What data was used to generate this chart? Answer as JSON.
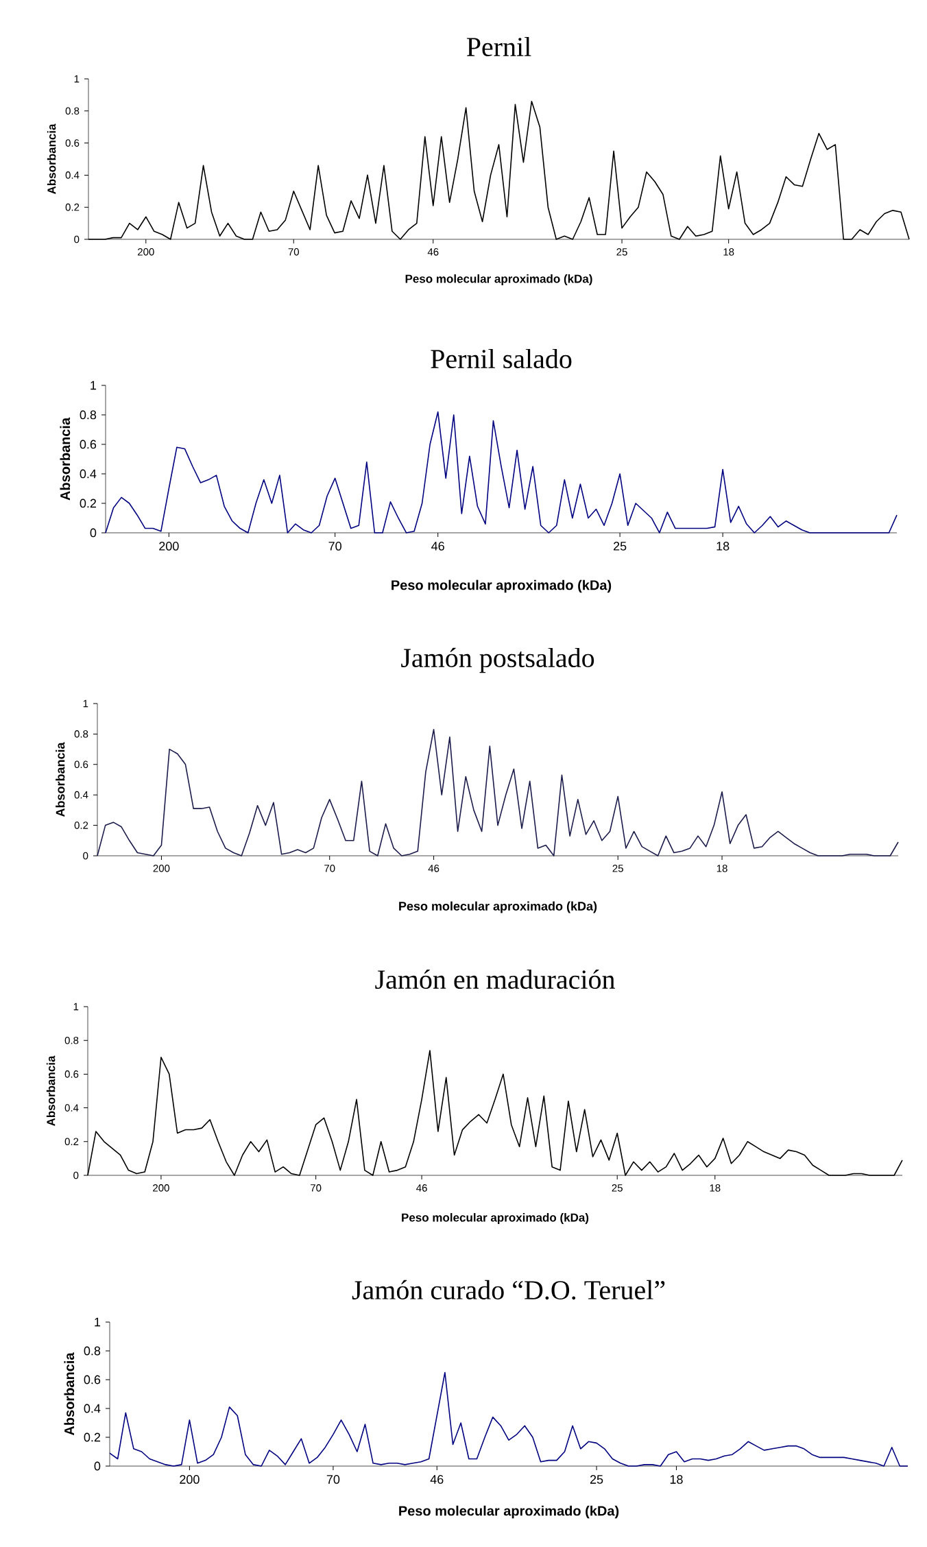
{
  "chart_data": [
    {
      "type": "line",
      "title": "Pernil",
      "xlabel": "Peso molecular aproximado (kDa)",
      "ylabel": "Absorbancia",
      "ylim": [
        0,
        1
      ],
      "yticks": [
        0,
        0.2,
        0.4,
        0.6,
        0.8,
        1
      ],
      "categories": [
        null,
        null,
        null,
        null,
        null,
        null,
        null,
        "200",
        null,
        null,
        null,
        null,
        null,
        null,
        null,
        null,
        null,
        null,
        null,
        null,
        null,
        null,
        null,
        null,
        null,
        "70",
        null,
        null,
        null,
        null,
        null,
        null,
        null,
        null,
        null,
        null,
        null,
        null,
        null,
        null,
        null,
        null,
        "46",
        null,
        null,
        null,
        null,
        null,
        null,
        null,
        null,
        null,
        null,
        null,
        null,
        null,
        null,
        null,
        null,
        null,
        null,
        null,
        null,
        null,
        null,
        "25",
        null,
        null,
        null,
        null,
        null,
        null,
        null,
        null,
        null,
        null,
        null,
        null,
        "18",
        null,
        null,
        null,
        null,
        null,
        null,
        null,
        null,
        null,
        null,
        null,
        null,
        null,
        null,
        null,
        null,
        null,
        null,
        null,
        null,
        null,
        null
      ],
      "series": [
        {
          "color": "#000000",
          "values": [
            0,
            0,
            0,
            0.01,
            0.01,
            0.1,
            0.06,
            0.14,
            0.05,
            0.03,
            0,
            0.23,
            0.07,
            0.1,
            0.46,
            0.17,
            0.02,
            0.1,
            0.02,
            0,
            0,
            0.17,
            0.05,
            0.06,
            0.12,
            0.3,
            0.18,
            0.06,
            0.46,
            0.15,
            0.04,
            0.05,
            0.24,
            0.13,
            0.4,
            0.1,
            0.46,
            0.05,
            0,
            0.06,
            0.1,
            0.64,
            0.21,
            0.64,
            0.23,
            0.5,
            0.82,
            0.3,
            0.11,
            0.4,
            0.59,
            0.14,
            0.84,
            0.48,
            0.86,
            0.7,
            0.2,
            0,
            0.02,
            0,
            0.11,
            0.26,
            0.03,
            0.03,
            0.55,
            0.07,
            0.14,
            0.2,
            0.42,
            0.36,
            0.28,
            0.02,
            0,
            0.08,
            0.02,
            0.03,
            0.05,
            0.52,
            0.19,
            0.42,
            0.1,
            0.03,
            0.06,
            0.1,
            0.23,
            0.39,
            0.34,
            0.33,
            0.5,
            0.66,
            0.56,
            0.59,
            0,
            0,
            0.06,
            0.03,
            0.11,
            0.16,
            0.18,
            0.17,
            0
          ]
        }
      ]
    },
    {
      "type": "line",
      "title": "Pernil salado",
      "xlabel": "Peso molecular aproximado (kDa)",
      "ylabel": "Absorbancia",
      "ylim": [
        0,
        1
      ],
      "yticks": [
        0,
        0.2,
        0.4,
        0.6,
        0.8,
        1
      ],
      "categories": [
        null,
        null,
        null,
        null,
        null,
        null,
        null,
        null,
        "200",
        null,
        null,
        null,
        null,
        null,
        null,
        null,
        null,
        null,
        null,
        null,
        null,
        null,
        null,
        null,
        null,
        null,
        null,
        null,
        null,
        "70",
        null,
        null,
        null,
        null,
        null,
        null,
        null,
        null,
        null,
        null,
        null,
        null,
        "46",
        null,
        null,
        null,
        null,
        null,
        null,
        null,
        null,
        null,
        null,
        null,
        null,
        null,
        null,
        null,
        null,
        null,
        null,
        null,
        null,
        null,
        null,
        "25",
        null,
        null,
        null,
        null,
        null,
        null,
        null,
        null,
        null,
        null,
        null,
        null,
        "18",
        null,
        null,
        null,
        null,
        null,
        null,
        null,
        null,
        null,
        null,
        null,
        null,
        null,
        null,
        null,
        null,
        null,
        null,
        null,
        null,
        null,
        null
      ],
      "series": [
        {
          "color": "#000080",
          "values": [
            0,
            0.17,
            0.24,
            0.2,
            0.12,
            0.03,
            0.03,
            0.01,
            0.3,
            0.58,
            0.57,
            0.45,
            0.34,
            0.36,
            0.39,
            0.18,
            0.08,
            0.03,
            0,
            0.2,
            0.36,
            0.2,
            0.39,
            0,
            0.06,
            0.02,
            0,
            0.05,
            0.25,
            0.37,
            0.2,
            0.03,
            0.05,
            0.48,
            0,
            0,
            0.21,
            0.1,
            0,
            0.01,
            0.2,
            0.6,
            0.82,
            0.37,
            0.8,
            0.13,
            0.52,
            0.18,
            0.06,
            0.76,
            0.45,
            0.17,
            0.56,
            0.16,
            0.45,
            0.05,
            0,
            0.05,
            0.36,
            0.1,
            0.33,
            0.1,
            0.16,
            0.05,
            0.2,
            0.4,
            0.05,
            0.2,
            0.15,
            0.1,
            0,
            0.14,
            0.03,
            0.03,
            0.03,
            0.03,
            0.03,
            0.04,
            0.43,
            0.07,
            0.18,
            0.06,
            0,
            0.05,
            0.11,
            0.04,
            0.08,
            0.05,
            0.02,
            0,
            0,
            0,
            0,
            0,
            0,
            0,
            0,
            0,
            0,
            0,
            0.12
          ]
        }
      ]
    },
    {
      "type": "line",
      "title": "Jamón postsalado",
      "xlabel": "Peso molecular aproximado (kDa)",
      "ylabel": "Absorbancia",
      "ylim": [
        0,
        1
      ],
      "yticks": [
        0,
        0.2,
        0.4,
        0.6,
        0.8,
        1
      ],
      "categories": [
        null,
        null,
        null,
        null,
        null,
        null,
        null,
        null,
        "200",
        null,
        null,
        null,
        null,
        null,
        null,
        null,
        null,
        null,
        null,
        null,
        null,
        null,
        null,
        null,
        null,
        null,
        null,
        null,
        null,
        "70",
        null,
        null,
        null,
        null,
        null,
        null,
        null,
        null,
        null,
        null,
        null,
        null,
        "46",
        null,
        null,
        null,
        null,
        null,
        null,
        null,
        null,
        null,
        null,
        null,
        null,
        null,
        null,
        null,
        null,
        null,
        null,
        null,
        null,
        null,
        null,
        "25",
        null,
        null,
        null,
        null,
        null,
        null,
        null,
        null,
        null,
        null,
        null,
        null,
        "18",
        null,
        null,
        null,
        null,
        null,
        null,
        null,
        null,
        null,
        null,
        null,
        null,
        null,
        null,
        null,
        null,
        null,
        null,
        null,
        null,
        null,
        null
      ],
      "series": [
        {
          "color": "#1c1c4c",
          "values": [
            0,
            0.2,
            0.22,
            0.19,
            0.1,
            0.02,
            0.01,
            0,
            0.07,
            0.7,
            0.67,
            0.6,
            0.31,
            0.31,
            0.32,
            0.16,
            0.05,
            0.02,
            0,
            0.15,
            0.33,
            0.2,
            0.35,
            0.01,
            0.02,
            0.04,
            0.02,
            0.05,
            0.25,
            0.37,
            0.24,
            0.1,
            0.1,
            0.49,
            0.03,
            0,
            0.21,
            0.05,
            0,
            0.01,
            0.03,
            0.55,
            0.83,
            0.4,
            0.78,
            0.16,
            0.52,
            0.3,
            0.16,
            0.72,
            0.2,
            0.4,
            0.57,
            0.18,
            0.49,
            0.05,
            0.07,
            0,
            0.53,
            0.13,
            0.37,
            0.14,
            0.23,
            0.1,
            0.16,
            0.39,
            0.05,
            0.16,
            0.06,
            0.03,
            0,
            0.13,
            0.02,
            0.03,
            0.05,
            0.13,
            0.06,
            0.2,
            0.42,
            0.08,
            0.2,
            0.27,
            0.05,
            0.06,
            0.12,
            0.16,
            0.12,
            0.08,
            0.05,
            0.02,
            0,
            0,
            0,
            0,
            0.01,
            0.01,
            0.01,
            0,
            0,
            0,
            0.09
          ]
        }
      ]
    },
    {
      "type": "line",
      "title": "Jamón en maduración",
      "xlabel": "Peso molecular aproximado (kDa)",
      "ylabel": "Absorbancia",
      "ylim": [
        0,
        1
      ],
      "yticks": [
        0,
        0.2,
        0.4,
        0.6,
        0.8,
        1
      ],
      "categories": [
        null,
        null,
        null,
        null,
        null,
        null,
        null,
        null,
        null,
        "200",
        null,
        null,
        null,
        null,
        null,
        null,
        null,
        null,
        null,
        null,
        null,
        null,
        null,
        null,
        null,
        null,
        null,
        null,
        "70",
        null,
        null,
        null,
        null,
        null,
        null,
        null,
        null,
        null,
        null,
        null,
        null,
        "46",
        null,
        null,
        null,
        null,
        null,
        null,
        null,
        null,
        null,
        null,
        null,
        null,
        null,
        null,
        null,
        null,
        null,
        null,
        null,
        null,
        null,
        null,
        null,
        "25",
        null,
        null,
        null,
        null,
        null,
        null,
        null,
        null,
        null,
        null,
        null,
        "18",
        null,
        null,
        null,
        null,
        null,
        null,
        null,
        null,
        null,
        null,
        null,
        null,
        null,
        null,
        null,
        null,
        null,
        null,
        null,
        null,
        null,
        null,
        null
      ],
      "series": [
        {
          "color": "#000000",
          "values": [
            0,
            0.26,
            0.2,
            0.16,
            0.12,
            0.03,
            0.01,
            0.02,
            0.2,
            0.7,
            0.6,
            0.25,
            0.27,
            0.27,
            0.28,
            0.33,
            0.2,
            0.08,
            0,
            0.12,
            0.2,
            0.14,
            0.21,
            0.02,
            0.05,
            0.01,
            0,
            0.15,
            0.3,
            0.34,
            0.2,
            0.03,
            0.2,
            0.45,
            0.03,
            0,
            0.2,
            0.02,
            0.03,
            0.05,
            0.2,
            0.45,
            0.74,
            0.26,
            0.58,
            0.12,
            0.27,
            0.32,
            0.36,
            0.31,
            0.45,
            0.6,
            0.3,
            0.17,
            0.46,
            0.17,
            0.47,
            0.05,
            0.03,
            0.44,
            0.14,
            0.39,
            0.11,
            0.21,
            0.09,
            0.25,
            0,
            0.08,
            0.03,
            0.08,
            0.02,
            0.05,
            0.13,
            0.03,
            0.07,
            0.12,
            0.05,
            0.1,
            0.22,
            0.07,
            0.12,
            0.2,
            0.17,
            0.14,
            0.12,
            0.1,
            0.15,
            0.14,
            0.12,
            0.06,
            0.03,
            0,
            0,
            0,
            0.01,
            0.01,
            0,
            0,
            0,
            0,
            0.09
          ]
        }
      ]
    },
    {
      "type": "line",
      "title": "Jamón curado “D.O. Teruel”",
      "xlabel": "Peso molecular aproximado (kDa)",
      "ylabel": "Absorbancia",
      "ylim": [
        0,
        1
      ],
      "yticks": [
        0,
        0.2,
        0.4,
        0.6,
        0.8,
        1
      ],
      "categories": [
        null,
        null,
        null,
        null,
        null,
        null,
        null,
        null,
        null,
        null,
        "200",
        null,
        null,
        null,
        null,
        null,
        null,
        null,
        null,
        null,
        null,
        null,
        null,
        null,
        null,
        null,
        null,
        null,
        "70",
        null,
        null,
        null,
        null,
        null,
        null,
        null,
        null,
        null,
        null,
        null,
        null,
        "46",
        null,
        null,
        null,
        null,
        null,
        null,
        null,
        null,
        null,
        null,
        null,
        null,
        null,
        null,
        null,
        null,
        null,
        null,
        null,
        "25",
        null,
        null,
        null,
        null,
        null,
        null,
        null,
        null,
        null,
        "18",
        null,
        null,
        null,
        null,
        null,
        null,
        null,
        null,
        null,
        null,
        null,
        null,
        null,
        null,
        null,
        null,
        null,
        null,
        null,
        null,
        null,
        null,
        null,
        null,
        null,
        null,
        null,
        null,
        null
      ],
      "series": [
        {
          "color": "#000080",
          "values": [
            0.09,
            0.05,
            0.37,
            0.12,
            0.1,
            0.05,
            0.03,
            0.01,
            0,
            0.01,
            0.32,
            0.02,
            0.04,
            0.08,
            0.2,
            0.41,
            0.35,
            0.08,
            0.01,
            0,
            0.11,
            0.07,
            0.01,
            0.1,
            0.19,
            0.02,
            0.06,
            0.13,
            0.22,
            0.32,
            0.22,
            0.1,
            0.29,
            0.02,
            0.01,
            0.02,
            0.02,
            0.01,
            0.02,
            0.03,
            0.05,
            0.35,
            0.65,
            0.15,
            0.3,
            0.05,
            0.05,
            0.2,
            0.34,
            0.28,
            0.18,
            0.22,
            0.28,
            0.2,
            0.03,
            0.04,
            0.04,
            0.1,
            0.28,
            0.12,
            0.17,
            0.16,
            0.12,
            0.05,
            0.02,
            0,
            0,
            0.01,
            0.01,
            0,
            0.08,
            0.1,
            0.03,
            0.05,
            0.05,
            0.04,
            0.05,
            0.07,
            0.08,
            0.12,
            0.17,
            0.14,
            0.11,
            0.12,
            0.13,
            0.14,
            0.14,
            0.12,
            0.08,
            0.06,
            0.06,
            0.06,
            0.06,
            0.05,
            0.04,
            0.03,
            0.02,
            0,
            0.13,
            0,
            0
          ]
        }
      ]
    }
  ]
}
